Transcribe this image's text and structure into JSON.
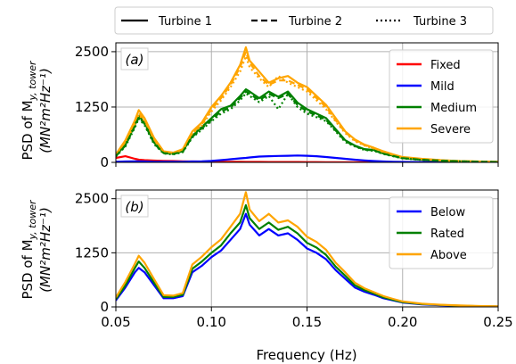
{
  "figure": {
    "top_legend": {
      "entries": [
        {
          "label": "Turbine 1",
          "style": "solid"
        },
        {
          "label": "Turbine 2",
          "style": "dashed"
        },
        {
          "label": "Turbine 3",
          "style": "dotted"
        }
      ]
    },
    "xlabel": "Frequency (Hz)",
    "ylabel_line1": "PSD of M",
    "ylabel_sub": "y, tower",
    "ylabel_line2": "(MN²m²Hz⁻¹)",
    "colors": {
      "red": "#ff0000",
      "blue": "#0000ff",
      "green": "#008000",
      "orange": "#ffa500",
      "grid": "#b0b0b0"
    }
  },
  "chart_data": [
    {
      "type": "line",
      "panel_label": "(a)",
      "xlim": [
        0.05,
        0.25
      ],
      "ylim": [
        0,
        2700
      ],
      "xticks": [
        0.05,
        0.1,
        0.15,
        0.2,
        0.25
      ],
      "xtick_labels": [
        "0.05",
        "0.10",
        "0.15",
        "0.20",
        "0.25"
      ],
      "yticks": [
        0,
        1250,
        2500
      ],
      "ytick_labels": [
        "0",
        "1250",
        "2500"
      ],
      "grid": true,
      "legend_position": "top-right",
      "x": [
        0.05,
        0.055,
        0.06,
        0.062,
        0.065,
        0.07,
        0.075,
        0.08,
        0.085,
        0.09,
        0.095,
        0.1,
        0.105,
        0.11,
        0.115,
        0.118,
        0.12,
        0.125,
        0.13,
        0.135,
        0.14,
        0.145,
        0.15,
        0.155,
        0.16,
        0.165,
        0.17,
        0.175,
        0.18,
        0.185,
        0.19,
        0.195,
        0.2,
        0.21,
        0.22,
        0.23,
        0.24,
        0.25
      ],
      "series": [
        {
          "name": "Fixed",
          "color": "#ff0000",
          "linestyle": "solid",
          "values": [
            100,
            140,
            80,
            60,
            50,
            40,
            35,
            30,
            25,
            20,
            18,
            15,
            15,
            12,
            12,
            10,
            10,
            10,
            8,
            8,
            8,
            8,
            6,
            6,
            5,
            5,
            5,
            4,
            4,
            4,
            3,
            3,
            3,
            3,
            2,
            2,
            2,
            2
          ]
        },
        {
          "name": "Mild",
          "color": "#0000ff",
          "linestyle": "solid",
          "values": [
            15,
            20,
            25,
            25,
            20,
            15,
            15,
            15,
            15,
            20,
            25,
            35,
            50,
            70,
            90,
            100,
            110,
            130,
            140,
            145,
            150,
            155,
            150,
            140,
            120,
            100,
            80,
            60,
            45,
            30,
            20,
            15,
            10,
            6,
            5,
            3,
            2,
            2
          ]
        },
        {
          "name": "Medium",
          "color": "#008000",
          "linestyle": "solid",
          "values": [
            150,
            400,
            850,
            1050,
            900,
            450,
            220,
            200,
            250,
            600,
            800,
            1000,
            1200,
            1280,
            1500,
            1650,
            1600,
            1450,
            1600,
            1480,
            1600,
            1350,
            1200,
            1100,
            1000,
            750,
            500,
            380,
            300,
            280,
            200,
            150,
            100,
            60,
            40,
            25,
            15,
            10
          ]
        },
        {
          "name": "Severe",
          "color": "#ffa500",
          "linestyle": "solid",
          "values": [
            180,
            500,
            950,
            1180,
            1000,
            550,
            250,
            220,
            300,
            700,
            900,
            1250,
            1500,
            1800,
            2200,
            2600,
            2300,
            2050,
            1800,
            1900,
            1950,
            1800,
            1700,
            1500,
            1300,
            1000,
            700,
            520,
            400,
            330,
            250,
            180,
            120,
            80,
            50,
            30,
            20,
            15
          ]
        },
        {
          "name": "",
          "color": "#ffa500",
          "linestyle": "dashed",
          "values": [
            170,
            470,
            900,
            1120,
            950,
            520,
            240,
            210,
            290,
            670,
            860,
            1200,
            1450,
            1750,
            2150,
            2500,
            2250,
            1950,
            1750,
            1850,
            1850,
            1750,
            1650,
            1450,
            1250,
            950,
            680,
            500,
            390,
            320,
            240,
            170,
            115,
            75,
            48,
            28,
            18,
            14
          ]
        },
        {
          "name": "",
          "color": "#ffa500",
          "linestyle": "dotted",
          "values": [
            160,
            450,
            870,
            1080,
            920,
            500,
            230,
            200,
            280,
            650,
            830,
            1150,
            1400,
            1700,
            2050,
            2400,
            2150,
            1900,
            1700,
            1950,
            1800,
            1700,
            1600,
            1400,
            1200,
            920,
            660,
            480,
            380,
            310,
            230,
            165,
            110,
            72,
            46,
            27,
            17,
            13
          ]
        },
        {
          "name": "",
          "color": "#008000",
          "linestyle": "dashed",
          "values": [
            140,
            380,
            820,
            1020,
            870,
            430,
            210,
            190,
            240,
            580,
            770,
            960,
            1150,
            1240,
            1450,
            1600,
            1550,
            1400,
            1550,
            1450,
            1550,
            1300,
            1150,
            1060,
            960,
            720,
            480,
            370,
            290,
            270,
            195,
            145,
            95,
            58,
            38,
            24,
            14,
            9
          ]
        },
        {
          "name": "",
          "color": "#008000",
          "linestyle": "dotted",
          "values": [
            130,
            360,
            790,
            990,
            840,
            410,
            200,
            180,
            230,
            560,
            740,
            930,
            1100,
            1200,
            1400,
            1560,
            1500,
            1360,
            1500,
            1200,
            1550,
            1250,
            1100,
            1020,
            930,
            700,
            460,
            360,
            280,
            260,
            190,
            140,
            90,
            55,
            36,
            23,
            13,
            8
          ]
        }
      ]
    },
    {
      "type": "line",
      "panel_label": "(b)",
      "xlim": [
        0.05,
        0.25
      ],
      "ylim": [
        0,
        2700
      ],
      "xticks": [
        0.05,
        0.1,
        0.15,
        0.2,
        0.25
      ],
      "xtick_labels": [
        "0.05",
        "0.10",
        "0.15",
        "0.20",
        "0.25"
      ],
      "yticks": [
        0,
        1250,
        2500
      ],
      "ytick_labels": [
        "0",
        "1250",
        "2500"
      ],
      "grid": true,
      "legend_position": "top-right",
      "x": [
        0.05,
        0.055,
        0.06,
        0.062,
        0.065,
        0.07,
        0.075,
        0.08,
        0.085,
        0.09,
        0.095,
        0.1,
        0.105,
        0.11,
        0.115,
        0.118,
        0.12,
        0.125,
        0.13,
        0.135,
        0.14,
        0.145,
        0.15,
        0.155,
        0.16,
        0.165,
        0.17,
        0.175,
        0.18,
        0.185,
        0.19,
        0.195,
        0.2,
        0.21,
        0.22,
        0.23,
        0.24,
        0.25
      ],
      "series": [
        {
          "name": "Below",
          "color": "#0000ff",
          "linestyle": "solid",
          "values": [
            150,
            450,
            800,
            900,
            800,
            500,
            200,
            200,
            250,
            800,
            950,
            1150,
            1300,
            1550,
            1800,
            2150,
            1900,
            1650,
            1800,
            1650,
            1700,
            1550,
            1350,
            1250,
            1100,
            850,
            650,
            450,
            350,
            280,
            200,
            150,
            100,
            60,
            40,
            25,
            15,
            10
          ]
        },
        {
          "name": "Rated",
          "color": "#008000",
          "linestyle": "solid",
          "values": [
            180,
            500,
            900,
            1050,
            900,
            560,
            230,
            230,
            280,
            880,
            1050,
            1250,
            1420,
            1700,
            1950,
            2350,
            2050,
            1800,
            1950,
            1780,
            1850,
            1700,
            1480,
            1370,
            1200,
            930,
            720,
            500,
            390,
            310,
            220,
            165,
            110,
            65,
            45,
            28,
            17,
            11
          ]
        },
        {
          "name": "Above",
          "color": "#ffa500",
          "linestyle": "solid",
          "values": [
            220,
            580,
            1000,
            1180,
            1020,
            640,
            270,
            260,
            320,
            980,
            1160,
            1380,
            1560,
            1850,
            2150,
            2650,
            2250,
            1980,
            2150,
            1950,
            2000,
            1850,
            1620,
            1500,
            1320,
            1020,
            800,
            560,
            430,
            340,
            250,
            185,
            125,
            75,
            50,
            32,
            20,
            13
          ]
        }
      ]
    }
  ]
}
